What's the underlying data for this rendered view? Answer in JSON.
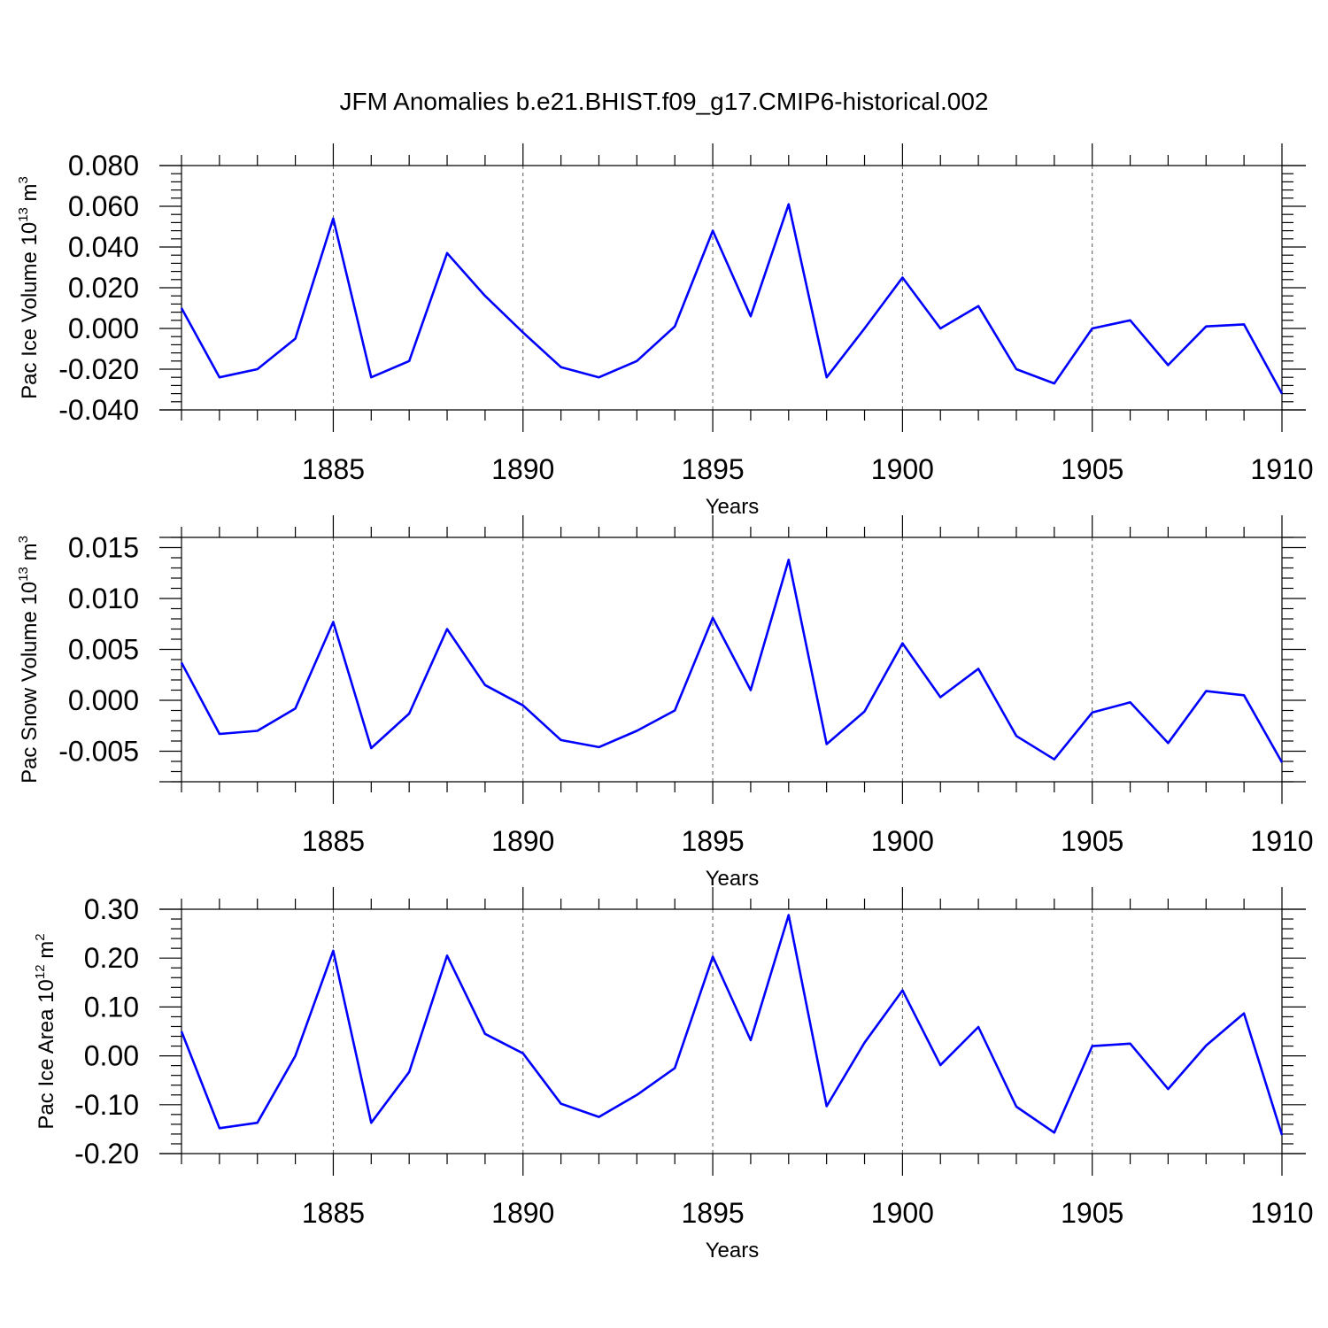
{
  "title": "JFM Anomalies b.e21.BHIST.f09_g17.CMIP6-historical.002",
  "series_color": "#0000ff",
  "years": [
    1881,
    1882,
    1883,
    1884,
    1885,
    1886,
    1887,
    1888,
    1889,
    1890,
    1891,
    1892,
    1893,
    1894,
    1895,
    1896,
    1897,
    1898,
    1899,
    1900,
    1901,
    1902,
    1903,
    1904,
    1905,
    1906,
    1907,
    1908,
    1909,
    1910
  ],
  "chart_data": [
    {
      "type": "line",
      "title": "JFM Anomalies b.e21.BHIST.f09_g17.CMIP6-historical.002",
      "xlabel": "Years",
      "ylabel": "Pac Ice Volume 10",
      "ylabel_exp": "13",
      "ylabel_unit": "m",
      "ylabel_unit_exp": "3",
      "xlim": [
        1881,
        1910
      ],
      "ylim": [
        -0.04,
        0.08
      ],
      "xticks": [
        1885,
        1890,
        1895,
        1900,
        1905,
        1910
      ],
      "xtick_labels": [
        "1885",
        "1890",
        "1895",
        "1900",
        "1905",
        "1910"
      ],
      "yticks": [
        0.08,
        0.06,
        0.04,
        0.02,
        0.0,
        -0.02,
        -0.04
      ],
      "ytick_labels": [
        "0.080",
        "0.060",
        "0.040",
        "0.020",
        "0.000",
        "-0.020",
        "-0.040"
      ],
      "series": [
        {
          "name": "Pac Ice Volume",
          "values": [
            0.01,
            -0.024,
            -0.02,
            -0.005,
            0.054,
            -0.024,
            -0.016,
            0.037,
            0.016,
            -0.002,
            -0.019,
            -0.024,
            -0.016,
            0.001,
            0.048,
            0.006,
            0.061,
            -0.024,
            0.0,
            0.025,
            0.0,
            0.011,
            -0.02,
            -0.027,
            0.0,
            0.004,
            -0.018,
            0.001,
            0.002,
            -0.032
          ]
        }
      ]
    },
    {
      "type": "line",
      "xlabel": "Years",
      "ylabel": "Pac Snow Volume 10",
      "ylabel_exp": "13",
      "ylabel_unit": "m",
      "ylabel_unit_exp": "3",
      "xlim": [
        1881,
        1910
      ],
      "ylim": [
        -0.008,
        0.016
      ],
      "xticks": [
        1885,
        1890,
        1895,
        1900,
        1905,
        1910
      ],
      "xtick_labels": [
        "1885",
        "1890",
        "1895",
        "1900",
        "1905",
        "1910"
      ],
      "yticks": [
        0.015,
        0.01,
        0.005,
        0.0,
        -0.005
      ],
      "ytick_labels": [
        "0.015",
        "0.010",
        "0.005",
        "0.000",
        "-0.005"
      ],
      "series": [
        {
          "name": "Pac Snow Volume",
          "values": [
            0.0037,
            -0.0033,
            -0.003,
            -0.0008,
            0.0077,
            -0.0047,
            -0.0013,
            0.007,
            0.0015,
            -0.0005,
            -0.0039,
            -0.0046,
            -0.003,
            -0.001,
            0.0081,
            0.001,
            0.0138,
            -0.0043,
            -0.0011,
            0.0056,
            0.0003,
            0.0031,
            -0.0035,
            -0.0058,
            -0.0012,
            -0.0002,
            -0.0042,
            0.0009,
            0.0005,
            -0.0061
          ]
        }
      ]
    },
    {
      "type": "line",
      "xlabel": "Years",
      "ylabel": "Pac Ice Area 10",
      "ylabel_exp": "12",
      "ylabel_unit": "m",
      "ylabel_unit_exp": "2",
      "xlim": [
        1881,
        1910
      ],
      "ylim": [
        -0.2,
        0.3
      ],
      "xticks": [
        1885,
        1890,
        1895,
        1900,
        1905,
        1910
      ],
      "xtick_labels": [
        "1885",
        "1890",
        "1895",
        "1900",
        "1905",
        "1910"
      ],
      "yticks": [
        0.3,
        0.2,
        0.1,
        0.0,
        -0.1,
        -0.2
      ],
      "ytick_labels": [
        "0.30",
        "0.20",
        "0.10",
        "0.00",
        "-0.10",
        "-0.20"
      ],
      "series": [
        {
          "name": "Pac Ice Area",
          "values": [
            0.05,
            -0.148,
            -0.137,
            0.0,
            0.215,
            -0.137,
            -0.033,
            0.205,
            0.045,
            0.005,
            -0.098,
            -0.125,
            -0.08,
            -0.025,
            0.203,
            0.032,
            0.288,
            -0.103,
            0.027,
            0.134,
            -0.019,
            0.059,
            -0.104,
            -0.157,
            0.02,
            0.025,
            -0.068,
            0.021,
            0.087,
            -0.162
          ]
        }
      ]
    }
  ]
}
